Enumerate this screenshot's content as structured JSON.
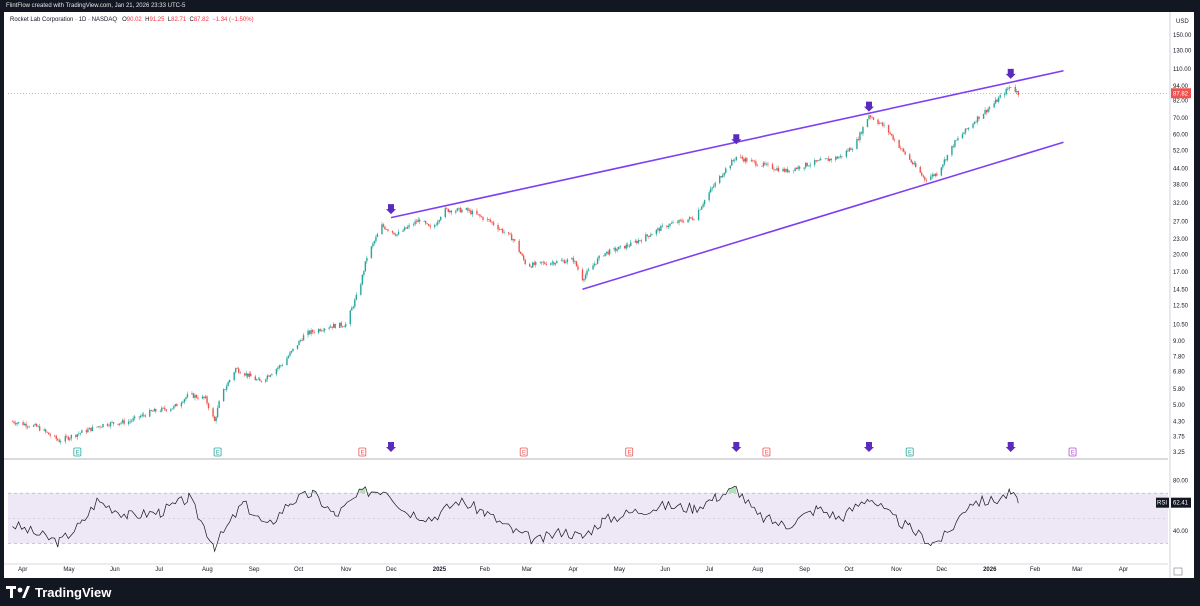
{
  "header": {
    "attribution": "FlintFlow created with TradingView.com, Jan 21, 2026 23:33 UTC-5"
  },
  "legend": {
    "name": "Rocket Lab Corporation · 1D · NASDAQ",
    "open_label": "O",
    "open": "90.02",
    "high_label": "H",
    "high": "91.25",
    "low_label": "L",
    "low": "82.71",
    "close_label": "C",
    "close": "87.82",
    "change": "−1.34 (−1.50%)"
  },
  "footer": {
    "brand": "TradingView"
  },
  "colors": {
    "up": "#26a69a",
    "down": "#ef5350",
    "channel": "#7e3ff2",
    "arrow": "#5b2bbf",
    "rsi_band": "#ede7f6",
    "rsi_fill": "#a5d6a7"
  },
  "chart_data": [
    {
      "type": "candlestick",
      "title": "Rocket Lab Corporation · 1D · NASDAQ",
      "y_scale": "log",
      "y_unit": "USD",
      "last_price": 87.82,
      "y_ticks": [
        150.0,
        130.0,
        110.0,
        94.0,
        82.0,
        70.0,
        60.0,
        52.0,
        44.0,
        38.0,
        32.0,
        27.0,
        23.0,
        20.0,
        17.0,
        14.5,
        12.5,
        10.5,
        9.0,
        7.8,
        6.8,
        5.8,
        5.0,
        4.3,
        3.75,
        3.25
      ],
      "x_ticks": [
        "Apr",
        "May",
        "Jun",
        "Jul",
        "Aug",
        "Sep",
        "Oct",
        "Nov",
        "Dec",
        "2025",
        "Feb",
        "Mar",
        "Apr",
        "May",
        "Jun",
        "Jul",
        "Aug",
        "Sep",
        "Oct",
        "Nov",
        "Dec",
        "2026",
        "Feb",
        "Mar",
        "Apr"
      ],
      "price_path": [
        [
          "2024-03-25",
          4.3
        ],
        [
          "2024-04-10",
          4.1
        ],
        [
          "2024-04-25",
          3.6
        ],
        [
          "2024-05-10",
          3.9
        ],
        [
          "2024-05-25",
          4.2
        ],
        [
          "2024-06-10",
          4.3
        ],
        [
          "2024-06-25",
          4.7
        ],
        [
          "2024-07-10",
          4.9
        ],
        [
          "2024-07-20",
          5.5
        ],
        [
          "2024-07-31",
          5.3
        ],
        [
          "2024-08-06",
          4.3
        ],
        [
          "2024-08-10",
          5.4
        ],
        [
          "2024-08-20",
          7.0
        ],
        [
          "2024-09-05",
          6.2
        ],
        [
          "2024-09-20",
          7.3
        ],
        [
          "2024-10-05",
          9.6
        ],
        [
          "2024-10-20",
          10.3
        ],
        [
          "2024-11-01",
          10.5
        ],
        [
          "2024-11-10",
          14.5
        ],
        [
          "2024-11-15",
          19.5
        ],
        [
          "2024-11-25",
          26.0
        ],
        [
          "2024-12-05",
          24.0
        ],
        [
          "2024-12-20",
          27.5
        ],
        [
          "2024-12-28",
          25.0
        ],
        [
          "2025-01-05",
          30.0
        ],
        [
          "2025-01-20",
          30.0
        ],
        [
          "2025-02-05",
          27.0
        ],
        [
          "2025-02-20",
          23.0
        ],
        [
          "2025-03-01",
          18.0
        ],
        [
          "2025-03-15",
          18.5
        ],
        [
          "2025-04-01",
          19.0
        ],
        [
          "2025-04-07",
          16.0
        ],
        [
          "2025-04-20",
          20.0
        ],
        [
          "2025-05-10",
          22.0
        ],
        [
          "2025-06-01",
          26.0
        ],
        [
          "2025-06-20",
          28.0
        ],
        [
          "2025-07-01",
          36.0
        ],
        [
          "2025-07-10",
          43.0
        ],
        [
          "2025-07-18",
          49.0
        ],
        [
          "2025-08-01",
          46.0
        ],
        [
          "2025-08-20",
          43.0
        ],
        [
          "2025-09-05",
          46.0
        ],
        [
          "2025-09-25",
          49.0
        ],
        [
          "2025-10-05",
          55.0
        ],
        [
          "2025-10-14",
          72.0
        ],
        [
          "2025-10-25",
          64.0
        ],
        [
          "2025-11-05",
          52.0
        ],
        [
          "2025-11-20",
          40.0
        ],
        [
          "2025-11-28",
          42.0
        ],
        [
          "2025-12-10",
          56.0
        ],
        [
          "2025-12-25",
          70.0
        ],
        [
          "2026-01-05",
          80.0
        ],
        [
          "2026-01-16",
          94.0
        ],
        [
          "2026-01-21",
          87.82
        ]
      ],
      "channel_upper": [
        [
          "2024-12-01",
          28.0
        ],
        [
          "2026-02-20",
          108.0
        ]
      ],
      "channel_lower": [
        [
          "2025-04-07",
          14.5
        ],
        [
          "2026-02-20",
          56.0
        ]
      ],
      "top_markers": [
        [
          "2024-12-01",
          30.0
        ],
        [
          "2025-07-18",
          57.0
        ],
        [
          "2025-10-14",
          77.0
        ],
        [
          "2026-01-16",
          104.0
        ]
      ]
    },
    {
      "type": "line",
      "title": "RSI",
      "value_label": "62.41",
      "ylim": [
        20,
        90
      ],
      "y_ticks": [
        80.0,
        40.0
      ],
      "band": [
        30,
        70
      ],
      "rsi_path": [
        [
          "2024-03-25",
          45
        ],
        [
          "2024-04-25",
          31
        ],
        [
          "2024-05-10",
          46
        ],
        [
          "2024-05-20",
          64
        ],
        [
          "2024-06-10",
          52
        ],
        [
          "2024-07-01",
          55
        ],
        [
          "2024-07-20",
          66
        ],
        [
          "2024-08-06",
          28
        ],
        [
          "2024-08-25",
          62
        ],
        [
          "2024-09-10",
          43
        ],
        [
          "2024-09-25",
          63
        ],
        [
          "2024-10-10",
          70
        ],
        [
          "2024-10-25",
          52
        ],
        [
          "2024-11-12",
          71
        ],
        [
          "2024-11-28",
          73
        ],
        [
          "2024-12-10",
          56
        ],
        [
          "2024-12-28",
          50
        ],
        [
          "2025-01-15",
          64
        ],
        [
          "2025-02-01",
          55
        ],
        [
          "2025-02-20",
          40
        ],
        [
          "2025-03-08",
          32
        ],
        [
          "2025-03-25",
          40
        ],
        [
          "2025-04-07",
          35
        ],
        [
          "2025-04-20",
          48
        ],
        [
          "2025-05-10",
          55
        ],
        [
          "2025-06-01",
          60
        ],
        [
          "2025-06-20",
          58
        ],
        [
          "2025-07-05",
          67
        ],
        [
          "2025-07-18",
          74
        ],
        [
          "2025-08-01",
          52
        ],
        [
          "2025-08-20",
          44
        ],
        [
          "2025-09-10",
          58
        ],
        [
          "2025-09-25",
          50
        ],
        [
          "2025-10-14",
          67
        ],
        [
          "2025-10-28",
          52
        ],
        [
          "2025-11-10",
          42
        ],
        [
          "2025-11-25",
          30
        ],
        [
          "2025-12-05",
          37
        ],
        [
          "2025-12-20",
          63
        ],
        [
          "2026-01-05",
          64
        ],
        [
          "2026-01-16",
          70
        ],
        [
          "2026-01-21",
          62
        ]
      ]
    }
  ],
  "event_markers": [
    {
      "date": "2024-05-07",
      "label": "E",
      "color": "#26a69a"
    },
    {
      "date": "2024-08-08",
      "label": "E",
      "color": "#26a69a"
    },
    {
      "date": "2024-11-12",
      "label": "E",
      "color": "#ef5350"
    },
    {
      "date": "2025-02-27",
      "label": "E",
      "color": "#ef5350"
    },
    {
      "date": "2025-05-08",
      "label": "E",
      "color": "#ef5350"
    },
    {
      "date": "2025-08-07",
      "label": "E",
      "color": "#ef5350"
    },
    {
      "date": "2025-11-10",
      "label": "E",
      "color": "#26a69a"
    },
    {
      "date": "2026-02-26",
      "label": "E",
      "color": "#b44fd4"
    }
  ]
}
